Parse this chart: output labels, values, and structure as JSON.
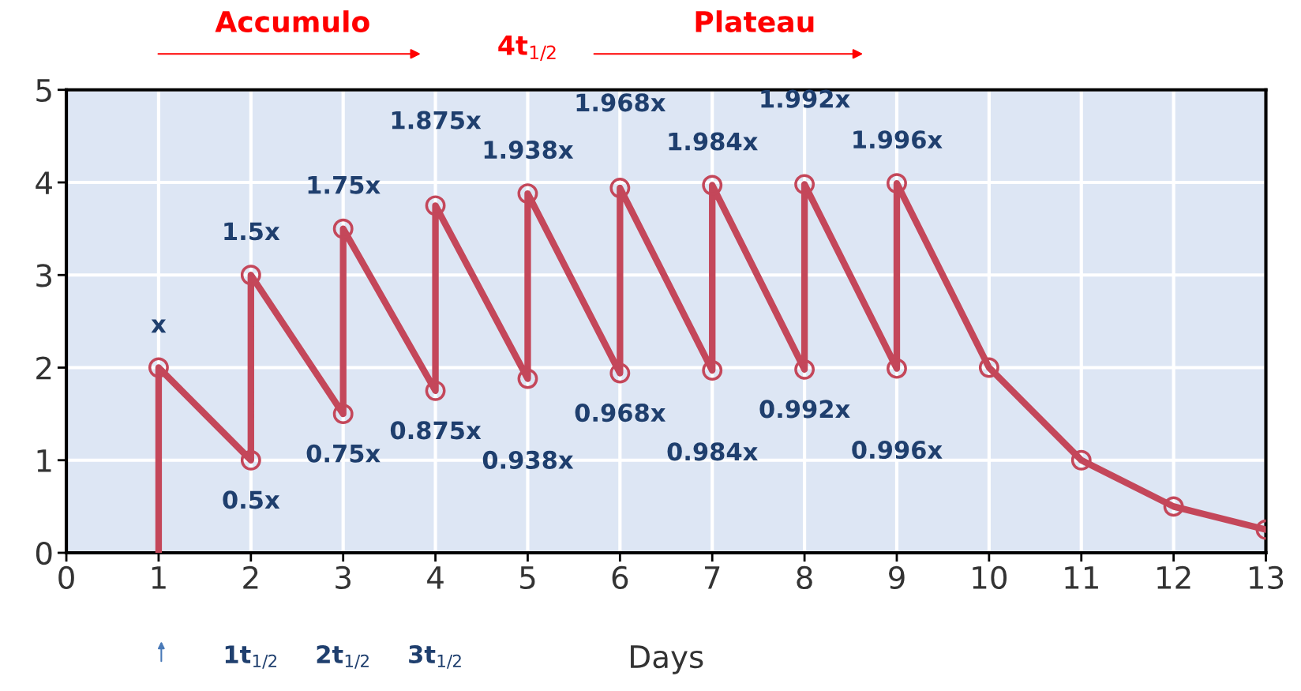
{
  "chart_data": {
    "type": "line",
    "xlabel": "Days",
    "xlim": [
      0,
      13
    ],
    "xticks": [
      0,
      1,
      2,
      3,
      4,
      5,
      6,
      7,
      8,
      9,
      10,
      11,
      12,
      13
    ],
    "ylim": [
      0,
      5
    ],
    "yticks": [
      0,
      1,
      2,
      3,
      4,
      5
    ],
    "grid": true,
    "series": [
      {
        "color": "#c4475a",
        "marker": "none",
        "x": [
          1,
          1,
          2,
          2,
          3,
          3,
          4,
          4,
          5,
          5,
          6,
          6,
          7,
          7,
          8,
          8,
          9,
          9,
          10,
          11,
          12,
          13
        ],
        "values": [
          0,
          2,
          1,
          3,
          1.5,
          3.5,
          1.75,
          3.75,
          1.88,
          3.88,
          1.94,
          3.94,
          1.97,
          3.97,
          1.98,
          3.98,
          1.99,
          3.99,
          2,
          1,
          0.5,
          0.25
        ]
      },
      {
        "type": "scatter",
        "color": "#c4475a",
        "marker": "circle",
        "x": [
          1,
          2,
          2,
          3,
          3,
          4,
          4,
          5,
          5,
          6,
          6,
          7,
          7,
          8,
          8,
          9,
          9,
          10,
          11,
          12,
          13
        ],
        "values": [
          2,
          1,
          3,
          1.5,
          3.5,
          1.75,
          3.75,
          1.88,
          3.88,
          1.94,
          3.94,
          1.97,
          3.97,
          1.98,
          3.98,
          1.99,
          3.99,
          2,
          1,
          0.5,
          0.25
        ]
      }
    ],
    "annotations": [
      "x",
      "0.5x",
      "1.5x",
      "0.75x",
      "1.75x",
      "0.875x",
      "1.875x",
      "0.938x",
      "1.938x",
      "0.968x",
      "1.968x",
      "0.984x",
      "1.984x",
      "0.992x",
      "1.992x",
      "0.996x",
      "1.996x",
      "1t$_{1/2}$",
      "2t$_{1/2}$",
      "3t$_{1/2}$",
      "4t$_{1/2}$",
      "Accumulo",
      "Plateau"
    ]
  }
}
